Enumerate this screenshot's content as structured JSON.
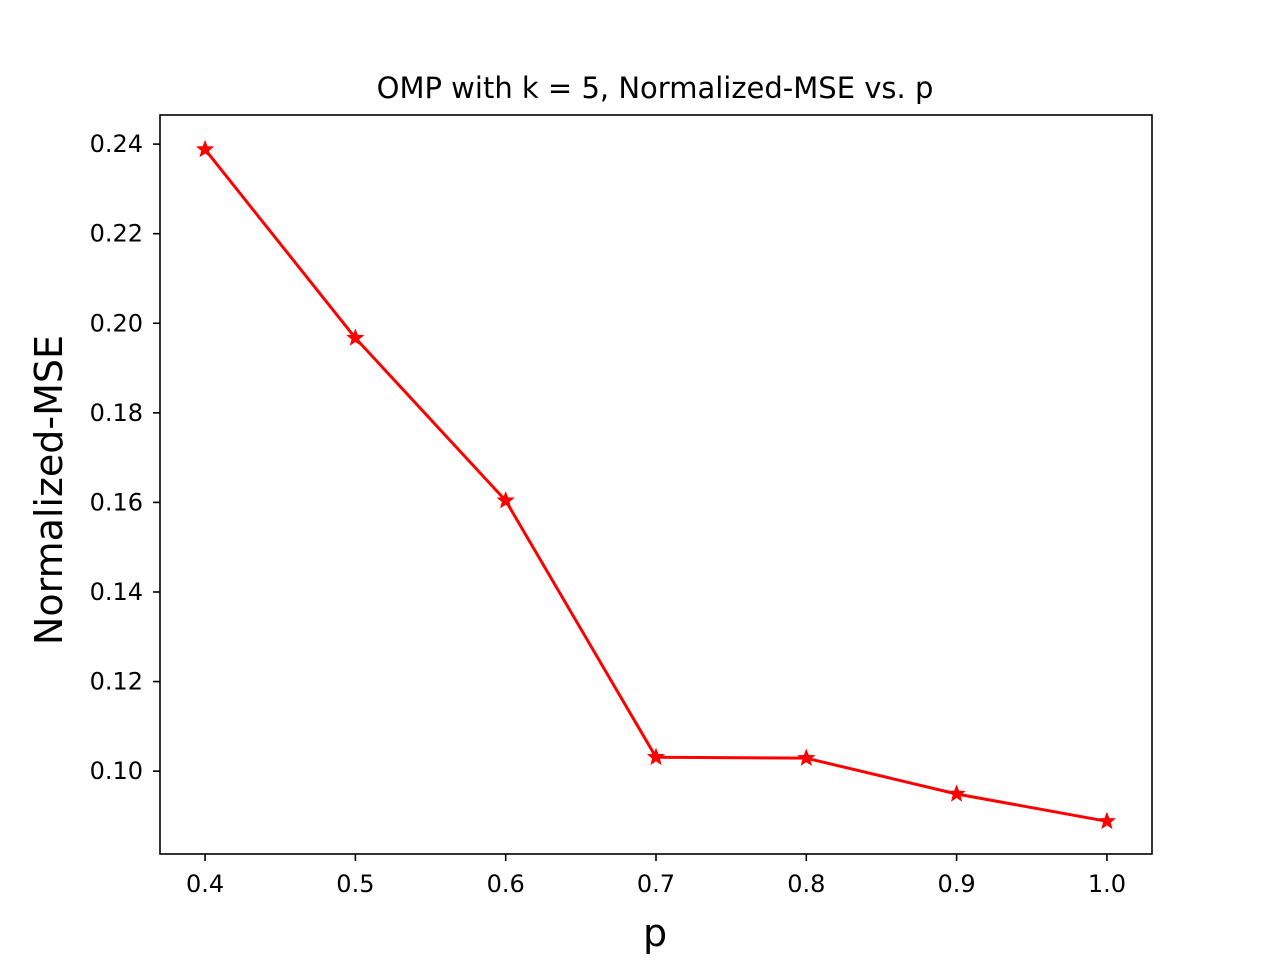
{
  "chart_data": {
    "type": "line",
    "title": "OMP with k = 5, Normalized-MSE vs. p",
    "xlabel": "p",
    "ylabel": "Normalized-MSE",
    "x": [
      0.4,
      0.5,
      0.6,
      0.7,
      0.8,
      0.9,
      1.0
    ],
    "x_tick_labels": [
      "0.4",
      "0.5",
      "0.6",
      "0.7",
      "0.8",
      "0.9",
      "1.0"
    ],
    "y_ticks": [
      0.1,
      0.12,
      0.14,
      0.16,
      0.18,
      0.2,
      0.22,
      0.24
    ],
    "y_tick_labels": [
      "0.10",
      "0.12",
      "0.14",
      "0.16",
      "0.18",
      "0.20",
      "0.22",
      "0.24"
    ],
    "xlim": [
      0.37,
      1.03
    ],
    "ylim": [
      0.0815,
      0.2465
    ],
    "grid": false,
    "series": [
      {
        "values": [
          0.2388,
          0.1967,
          0.1604,
          0.1031,
          0.1029,
          0.0949,
          0.0888
        ],
        "color": "#ff0000",
        "marker": "star"
      }
    ]
  }
}
